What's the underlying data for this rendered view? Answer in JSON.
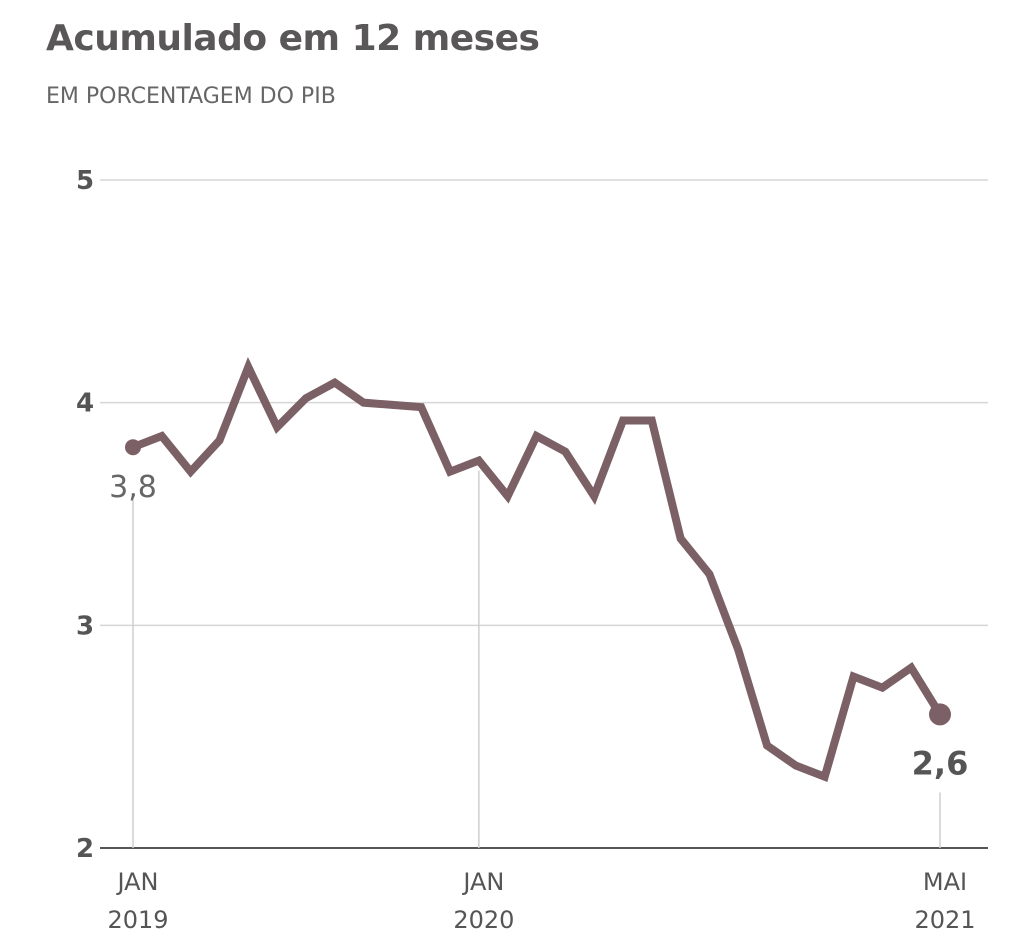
{
  "chart_data": {
    "type": "line",
    "title": "Acumulado em 12 meses",
    "subtitle": "EM PORCENTAGEM DO PIB",
    "xlabel": "",
    "ylabel": "",
    "ylim": [
      2,
      5
    ],
    "yticks": [
      "2",
      "3",
      "4",
      "5"
    ],
    "ytick_values": [
      2,
      3,
      4,
      5
    ],
    "grid": true,
    "xticks": [
      {
        "index": 0,
        "line1": "JAN",
        "line2": "2019"
      },
      {
        "index": 12,
        "line1": "JAN",
        "line2": "2020"
      },
      {
        "index": 28,
        "line1": "MAI",
        "line2": "2021"
      }
    ],
    "series": [
      {
        "name": "Acumulado em 12 meses",
        "color": "#7b6065",
        "values": [
          3.8,
          3.85,
          3.69,
          3.83,
          4.16,
          3.89,
          4.02,
          4.09,
          4.0,
          3.99,
          3.98,
          3.69,
          3.74,
          3.58,
          3.85,
          3.78,
          3.58,
          3.92,
          3.92,
          3.39,
          3.23,
          2.89,
          2.46,
          2.37,
          2.32,
          2.77,
          2.72,
          2.81,
          2.6
        ]
      }
    ],
    "annotations": [
      {
        "index": 0,
        "text": "3,8",
        "bold": false
      },
      {
        "index": 28,
        "text": "2,6",
        "bold": true
      }
    ]
  }
}
